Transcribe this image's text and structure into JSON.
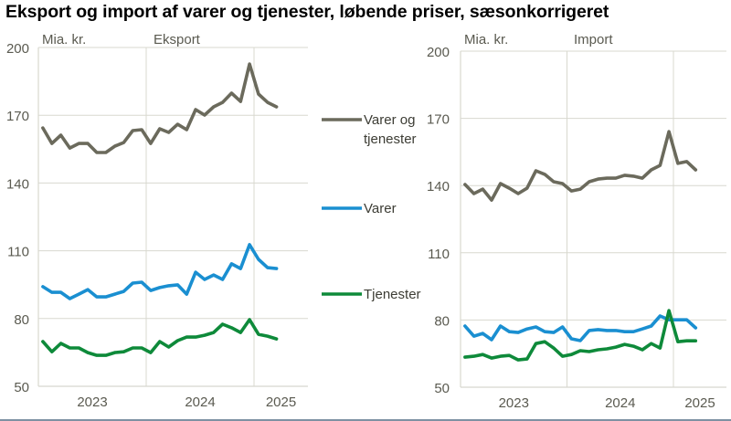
{
  "title": "Eksport og import af varer og tjenester, løbende priser, sæsonkorrigeret",
  "colors": {
    "total": "#6b6a5c",
    "varer": "#1a8fd1",
    "tjenester": "#0e8a3a",
    "grid": "#d8d8cf",
    "axis_text": "#5a5a50"
  },
  "legend": [
    {
      "key": "total",
      "label_lines": [
        "Varer og",
        "tjenester"
      ]
    },
    {
      "key": "varer",
      "label_lines": [
        "Varer"
      ]
    },
    {
      "key": "tjenester",
      "label_lines": [
        "Tjenester"
      ]
    }
  ],
  "chart_data": [
    {
      "type": "line",
      "title": "Eksport",
      "ylabel": "Mia. kr.",
      "xlabel": "",
      "ylim": [
        50,
        200
      ],
      "yticks": [
        50,
        80,
        110,
        140,
        170,
        200
      ],
      "xticks": [
        "2023",
        "2024",
        "2025"
      ],
      "x_start": "2023-01",
      "frequency": "monthly",
      "x": [
        "2023-01",
        "2023-02",
        "2023-03",
        "2023-04",
        "2023-05",
        "2023-06",
        "2023-07",
        "2023-08",
        "2023-09",
        "2023-10",
        "2023-11",
        "2023-12",
        "2024-01",
        "2024-02",
        "2024-03",
        "2024-04",
        "2024-05",
        "2024-06",
        "2024-07",
        "2024-08",
        "2024-09",
        "2024-10",
        "2024-11",
        "2024-12",
        "2025-01",
        "2025-02",
        "2025-03"
      ],
      "grid": true,
      "series": [
        {
          "name": "Varer og tjenester",
          "key": "total",
          "values": [
            164.4,
            157.5,
            161.2,
            155.5,
            157.5,
            157.5,
            153.5,
            153.5,
            156.3,
            157.9,
            163.2,
            163.6,
            157.5,
            164.0,
            162.4,
            166.0,
            163.6,
            172.5,
            170.1,
            173.7,
            175.7,
            179.8,
            176.1,
            192.7,
            179.4,
            175.7,
            173.7
          ]
        },
        {
          "name": "Varer",
          "key": "varer",
          "values": [
            94.1,
            91.6,
            91.6,
            88.8,
            90.8,
            92.8,
            89.6,
            89.6,
            90.8,
            92.0,
            95.7,
            96.1,
            92.4,
            93.7,
            94.5,
            94.9,
            90.8,
            100.5,
            97.3,
            99.3,
            97.3,
            104.2,
            102.1,
            112.7,
            106.2,
            102.5,
            102.1
          ]
        },
        {
          "name": "Tjenester",
          "key": "tjenester",
          "values": [
            69.8,
            65.3,
            69.0,
            67.0,
            67.0,
            64.9,
            63.7,
            63.7,
            64.9,
            65.3,
            67.0,
            67.0,
            64.9,
            69.8,
            67.4,
            70.2,
            71.8,
            71.8,
            72.6,
            73.8,
            77.5,
            75.9,
            73.8,
            79.5,
            73.0,
            72.2,
            71.0
          ]
        }
      ]
    },
    {
      "type": "line",
      "title": "Import",
      "ylabel": "Mia. kr.",
      "xlabel": "",
      "ylim": [
        50,
        200
      ],
      "yticks": [
        50,
        80,
        110,
        140,
        170,
        200
      ],
      "xticks": [
        "2023",
        "2024",
        "2025"
      ],
      "x_start": "2023-01",
      "frequency": "monthly",
      "x": [
        "2023-01",
        "2023-02",
        "2023-03",
        "2023-04",
        "2023-05",
        "2023-06",
        "2023-07",
        "2023-08",
        "2023-09",
        "2023-10",
        "2023-11",
        "2023-12",
        "2024-01",
        "2024-02",
        "2024-03",
        "2024-04",
        "2024-05",
        "2024-06",
        "2024-07",
        "2024-08",
        "2024-09",
        "2024-10",
        "2024-11",
        "2024-12",
        "2025-01",
        "2025-02",
        "2025-03"
      ],
      "grid": true,
      "series": [
        {
          "name": "Varer og tjenester",
          "key": "total",
          "values": [
            140.5,
            136.4,
            138.4,
            133.5,
            140.9,
            138.8,
            136.4,
            138.8,
            146.6,
            145.0,
            141.7,
            140.9,
            137.6,
            138.4,
            141.7,
            142.9,
            143.3,
            143.3,
            144.6,
            144.2,
            143.3,
            147.0,
            149.0,
            164.1,
            149.9,
            150.7,
            147.0
          ]
        },
        {
          "name": "Varer",
          "key": "varer",
          "values": [
            77.3,
            72.8,
            74.0,
            71.2,
            77.3,
            74.8,
            74.4,
            76.0,
            76.9,
            74.8,
            74.4,
            76.9,
            71.6,
            70.8,
            75.3,
            75.7,
            75.3,
            75.3,
            74.8,
            74.8,
            76.0,
            77.3,
            81.8,
            80.1,
            80.1,
            80.1,
            76.5
          ]
        },
        {
          "name": "Tjenester",
          "key": "tjenester",
          "values": [
            63.4,
            63.8,
            64.6,
            63.0,
            63.8,
            64.2,
            62.2,
            62.6,
            69.5,
            70.3,
            67.5,
            63.8,
            64.6,
            66.3,
            65.9,
            66.7,
            67.1,
            67.9,
            69.1,
            68.3,
            66.7,
            69.5,
            67.5,
            84.2,
            70.3,
            70.7,
            70.7
          ]
        }
      ]
    }
  ]
}
